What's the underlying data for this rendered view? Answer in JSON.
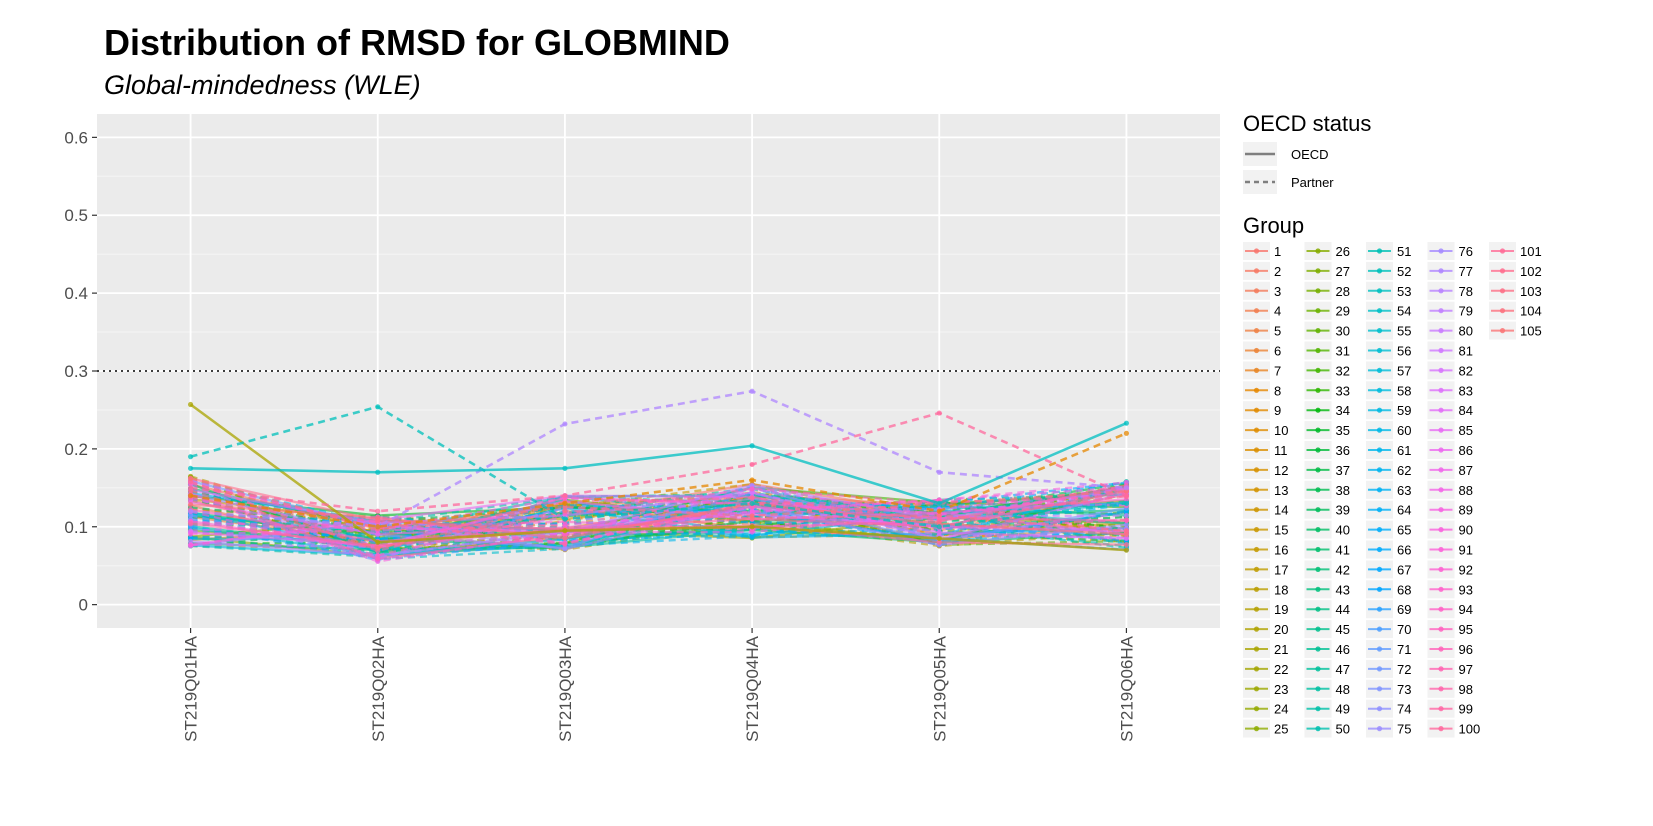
{
  "chart_data": {
    "type": "line",
    "title": "Distribution of RMSD for GLOBMIND",
    "subtitle": "Global-mindedness (WLE)",
    "xlabel": "",
    "ylabel": "",
    "categories": [
      "ST219Q01HA",
      "ST219Q02HA",
      "ST219Q03HA",
      "ST219Q04HA",
      "ST219Q05HA",
      "ST219Q06HA"
    ],
    "ylim": [
      -0.03,
      0.63
    ],
    "yticks": [
      0,
      0.1,
      0.2,
      0.3,
      0.4,
      0.5,
      0.6
    ],
    "ytick_labels": [
      "0",
      "0.1",
      "0.2",
      "0.3",
      "0.4",
      "0.5",
      "0.6"
    ],
    "reference_line": 0.3,
    "grid": true,
    "legend_position": "right",
    "linetype_legend": {
      "title": "OECD status",
      "items": [
        {
          "label": "OECD",
          "linetype": "solid"
        },
        {
          "label": "Partner",
          "linetype": "dashed"
        }
      ]
    },
    "color_legend": {
      "title": "Group",
      "labels": [
        "1",
        "2",
        "3",
        "4",
        "5",
        "6",
        "7",
        "8",
        "9",
        "10",
        "11",
        "12",
        "13",
        "14",
        "15",
        "16",
        "17",
        "18",
        "19",
        "20",
        "21",
        "22",
        "23",
        "24",
        "25",
        "26",
        "27",
        "28",
        "29",
        "30",
        "31",
        "32",
        "33",
        "34",
        "35",
        "36",
        "37",
        "38",
        "39",
        "40",
        "41",
        "42",
        "43",
        "44",
        "45",
        "46",
        "47",
        "48",
        "49",
        "50",
        "51",
        "52",
        "53",
        "54",
        "55",
        "56",
        "57",
        "58",
        "59",
        "60",
        "61",
        "62",
        "63",
        "64",
        "65",
        "66",
        "67",
        "68",
        "69",
        "70",
        "71",
        "72",
        "73",
        "74",
        "75",
        "76",
        "77",
        "78",
        "79",
        "80",
        "81",
        "82",
        "83",
        "84",
        "85",
        "86",
        "87",
        "88",
        "89",
        "90",
        "91",
        "92",
        "93",
        "94",
        "95",
        "96",
        "97",
        "98",
        "99",
        "100",
        "101",
        "102",
        "103",
        "104",
        "105"
      ]
    },
    "notable_series": [
      {
        "name": "21",
        "status": "OECD",
        "values": [
          0.257,
          0.08,
          0.095,
          0.1,
          0.085,
          0.07
        ]
      },
      {
        "name": "52",
        "status": "Partner",
        "values": [
          0.19,
          0.254,
          0.11,
          0.13,
          0.1,
          0.13
        ]
      },
      {
        "name": "77",
        "status": "Partner",
        "values": [
          0.12,
          0.1,
          0.232,
          0.274,
          0.17,
          0.15
        ]
      },
      {
        "name": "100",
        "status": "Partner",
        "values": [
          0.15,
          0.12,
          0.14,
          0.18,
          0.246,
          0.14
        ]
      },
      {
        "name": "53",
        "status": "OECD",
        "values": [
          0.175,
          0.17,
          0.175,
          0.204,
          0.13,
          0.233
        ]
      },
      {
        "name": "8",
        "status": "Partner",
        "values": [
          0.14,
          0.1,
          0.13,
          0.16,
          0.12,
          0.22
        ]
      }
    ]
  }
}
